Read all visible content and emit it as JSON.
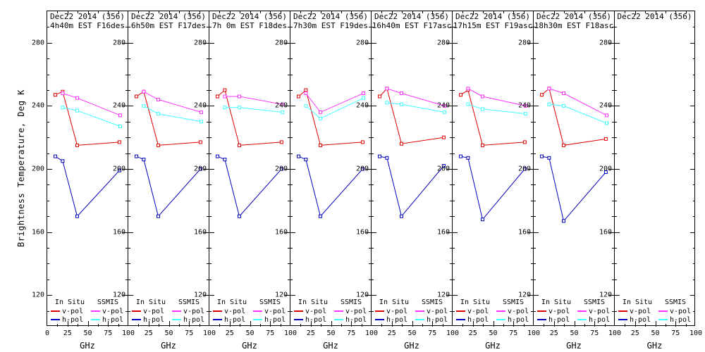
{
  "figure": {
    "ylabel": "Brightness Temperature, Deg K",
    "xlabel": "GHz",
    "background": "#ffffff",
    "frame_color": "#000000"
  },
  "legend": {
    "groups": [
      {
        "title": "In Situ",
        "series": [
          {
            "label": "v-pol",
            "color": "#dd0000"
          },
          {
            "label": "h-pol",
            "color": "#0000bb"
          }
        ]
      },
      {
        "title": "SSMIS",
        "series": [
          {
            "label": "v-pol",
            "color": "#ff33ff"
          },
          {
            "label": "h-pol",
            "color": "#44ffff"
          }
        ]
      }
    ]
  },
  "chart_data": {
    "type": "line",
    "xlim": [
      0,
      100
    ],
    "ylim": [
      100,
      300
    ],
    "yticks": [
      120,
      160,
      200,
      240,
      280
    ],
    "grid": false,
    "marker": "open-square",
    "panels": [
      {
        "title_line1": "Dec22 2014 (356)",
        "title_line2": "4h40m EST F16des",
        "xticks": [
          0,
          25,
          50,
          75,
          100
        ],
        "series": [
          {
            "name": "in-situ-v-pol",
            "color": "#dd0000",
            "x": [
              10,
              19,
              37,
              89
            ],
            "y": [
              247,
              249,
              215,
              217
            ]
          },
          {
            "name": "in-situ-h-pol",
            "color": "#0000bb",
            "x": [
              10,
              19,
              37,
              89
            ],
            "y": [
              208,
              205,
              170,
              199
            ]
          },
          {
            "name": "ssmis-v-pol",
            "color": "#ff33ff",
            "x": [
              19,
              37,
              90
            ],
            "y": [
              248,
              245,
              234
            ]
          },
          {
            "name": "ssmis-h-pol",
            "color": "#44ffff",
            "x": [
              19,
              37,
              90
            ],
            "y": [
              239,
              237,
              227
            ]
          }
        ]
      },
      {
        "title_line1": "Dec22 2014 (356)",
        "title_line2": "6h50m EST F17des",
        "xticks": [
          25,
          50,
          75,
          100
        ],
        "series": [
          {
            "name": "in-situ-v-pol",
            "color": "#dd0000",
            "x": [
              10,
              19,
              37,
              89
            ],
            "y": [
              246,
              249,
              215,
              217
            ]
          },
          {
            "name": "in-situ-h-pol",
            "color": "#0000bb",
            "x": [
              10,
              19,
              37,
              89
            ],
            "y": [
              208,
              206,
              170,
              200
            ]
          },
          {
            "name": "ssmis-v-pol",
            "color": "#ff33ff",
            "x": [
              19,
              37,
              90
            ],
            "y": [
              249,
              244,
              236
            ]
          },
          {
            "name": "ssmis-h-pol",
            "color": "#44ffff",
            "x": [
              19,
              37,
              90
            ],
            "y": [
              240,
              235,
              230
            ]
          }
        ]
      },
      {
        "title_line1": "Dec22 2014 (356)",
        "title_line2": "7h 0m EST F18des",
        "xticks": [
          25,
          50,
          75,
          100
        ],
        "series": [
          {
            "name": "in-situ-v-pol",
            "color": "#dd0000",
            "x": [
              10,
              19,
              37,
              89
            ],
            "y": [
              246,
              250,
              215,
              217
            ]
          },
          {
            "name": "in-situ-h-pol",
            "color": "#0000bb",
            "x": [
              10,
              19,
              37,
              89
            ],
            "y": [
              208,
              206,
              170,
              200
            ]
          },
          {
            "name": "ssmis-v-pol",
            "color": "#ff33ff",
            "x": [
              19,
              37,
              90
            ],
            "y": [
              246,
              246,
              241
            ]
          },
          {
            "name": "ssmis-h-pol",
            "color": "#44ffff",
            "x": [
              19,
              37,
              90
            ],
            "y": [
              239,
              239,
              236
            ]
          }
        ]
      },
      {
        "title_line1": "Dec22 2014 (356)",
        "title_line2": "7h30m EST F19des",
        "xticks": [
          25,
          50,
          75,
          100
        ],
        "series": [
          {
            "name": "in-situ-v-pol",
            "color": "#dd0000",
            "x": [
              10,
              19,
              37,
              89
            ],
            "y": [
              246,
              250,
              215,
              217
            ]
          },
          {
            "name": "in-situ-h-pol",
            "color": "#0000bb",
            "x": [
              10,
              19,
              37,
              89
            ],
            "y": [
              208,
              206,
              170,
              200
            ]
          },
          {
            "name": "ssmis-v-pol",
            "color": "#ff33ff",
            "x": [
              19,
              37,
              90
            ],
            "y": [
              248,
              236,
              248
            ]
          },
          {
            "name": "ssmis-h-pol",
            "color": "#44ffff",
            "x": [
              19,
              37,
              90
            ],
            "y": [
              240,
              232,
              245
            ]
          }
        ]
      },
      {
        "title_line1": "Dec22 2014 (356)",
        "title_line2": "16h40m EST F17asc",
        "xticks": [
          25,
          50,
          75,
          100
        ],
        "series": [
          {
            "name": "in-situ-v-pol",
            "color": "#dd0000",
            "x": [
              10,
              19,
              37,
              89
            ],
            "y": [
              246,
              251,
              216,
              220
            ]
          },
          {
            "name": "in-situ-h-pol",
            "color": "#0000bb",
            "x": [
              10,
              19,
              37,
              89
            ],
            "y": [
              208,
              207,
              170,
              202
            ]
          },
          {
            "name": "ssmis-v-pol",
            "color": "#ff33ff",
            "x": [
              19,
              37,
              90
            ],
            "y": [
              251,
              248,
              240
            ]
          },
          {
            "name": "ssmis-h-pol",
            "color": "#44ffff",
            "x": [
              19,
              37,
              90
            ],
            "y": [
              242,
              241,
              236
            ]
          }
        ]
      },
      {
        "title_line1": "Dec22 2014 (356)",
        "title_line2": "17h15m EST F19asc",
        "xticks": [
          25,
          50,
          75,
          100
        ],
        "series": [
          {
            "name": "in-situ-v-pol",
            "color": "#dd0000",
            "x": [
              10,
              19,
              37,
              89
            ],
            "y": [
              247,
              250,
              215,
              217
            ]
          },
          {
            "name": "in-situ-h-pol",
            "color": "#0000bb",
            "x": [
              10,
              19,
              37,
              89
            ],
            "y": [
              208,
              207,
              168,
              200
            ]
          },
          {
            "name": "ssmis-v-pol",
            "color": "#ff33ff",
            "x": [
              19,
              37,
              90
            ],
            "y": [
              251,
              246,
              240
            ]
          },
          {
            "name": "ssmis-h-pol",
            "color": "#44ffff",
            "x": [
              19,
              37,
              90
            ],
            "y": [
              241,
              238,
              235
            ]
          }
        ]
      },
      {
        "title_line1": "Dec22 2014 (356)",
        "title_line2": "18h30m EST F18asc",
        "xticks": [
          25,
          50,
          75,
          100
        ],
        "series": [
          {
            "name": "in-situ-v-pol",
            "color": "#dd0000",
            "x": [
              10,
              19,
              37,
              89
            ],
            "y": [
              247,
              251,
              215,
              219
            ]
          },
          {
            "name": "in-situ-h-pol",
            "color": "#0000bb",
            "x": [
              10,
              19,
              37,
              89
            ],
            "y": [
              208,
              207,
              167,
              198
            ]
          },
          {
            "name": "ssmis-v-pol",
            "color": "#ff33ff",
            "x": [
              19,
              37,
              90
            ],
            "y": [
              251,
              248,
              234
            ]
          },
          {
            "name": "ssmis-h-pol",
            "color": "#44ffff",
            "x": [
              19,
              37,
              90
            ],
            "y": [
              241,
              240,
              229
            ]
          }
        ]
      },
      {
        "title_line1": "Dec22 2014 (356)",
        "title_line2": "",
        "xticks": [
          25,
          50,
          75,
          100
        ],
        "series": []
      }
    ]
  }
}
